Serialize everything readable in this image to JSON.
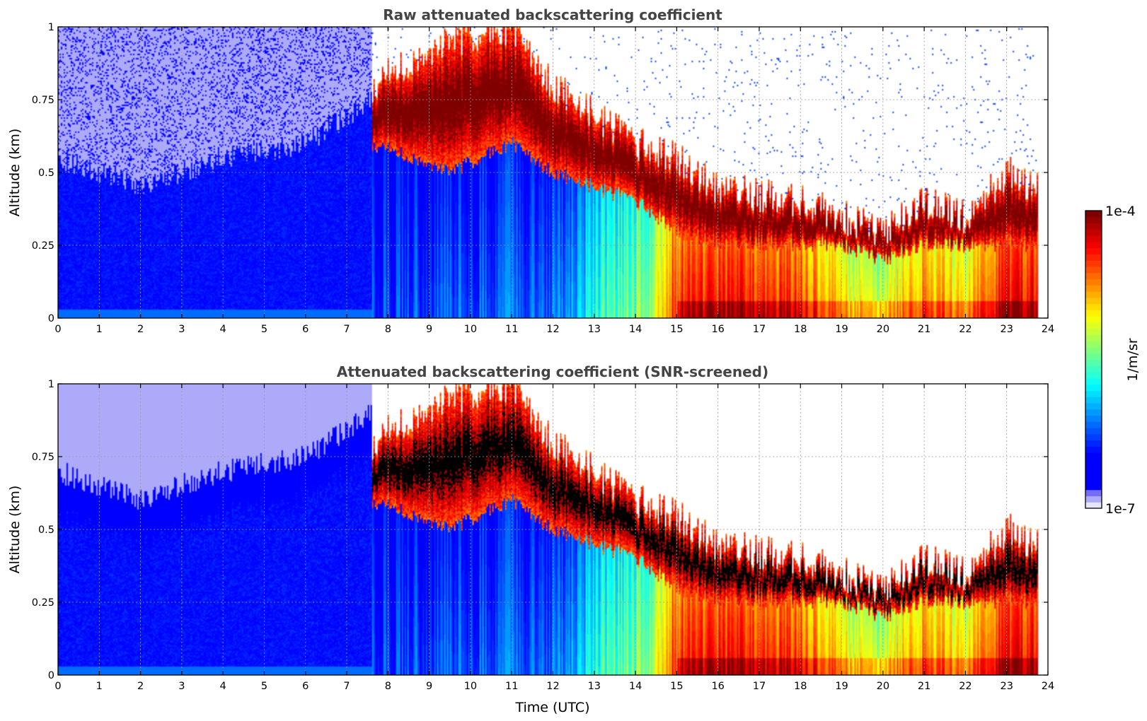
{
  "chart_data": [
    {
      "type": "heatmap",
      "title": "Raw attenuated backscattering coefficient",
      "xlabel": "",
      "ylabel": "Altitude (km)",
      "xlim": [
        0,
        24
      ],
      "ylim": [
        0,
        1
      ],
      "xticks": [
        "0",
        "1",
        "2",
        "3",
        "4",
        "5",
        "6",
        "7",
        "8",
        "9",
        "10",
        "11",
        "12",
        "13",
        "14",
        "15",
        "16",
        "17",
        "18",
        "19",
        "20",
        "21",
        "22",
        "23",
        "24"
      ],
      "yticks": [
        "0",
        "0.25",
        "0.5",
        "0.75",
        "1"
      ],
      "ytick_values": [
        0,
        0.25,
        0.5,
        0.75,
        1
      ],
      "grid": true,
      "screened": false,
      "color_scale": "log10 backscatter, 1e-7 to 1e-4 1/m/sr",
      "layers": [
        {
          "time": [
            0,
            2,
            4,
            6,
            7.6
          ],
          "boundary_layer_top_km": [
            0.55,
            0.45,
            0.55,
            0.6,
            0.75
          ],
          "log10_value": -6.5
        },
        {
          "time": [
            7.6,
            9.5,
            11,
            12,
            13,
            14,
            15,
            16,
            18,
            19,
            20,
            21,
            22,
            23,
            23.75
          ],
          "cloud_top_km": [
            0.8,
            0.95,
            1.0,
            0.8,
            0.7,
            0.6,
            0.55,
            0.45,
            0.4,
            0.35,
            0.3,
            0.4,
            0.35,
            0.5,
            0.45
          ],
          "cloud_base_km": [
            0.6,
            0.5,
            0.6,
            0.5,
            0.45,
            0.4,
            0.3,
            0.25,
            0.25,
            0.25,
            0.2,
            0.25,
            0.25,
            0.25,
            0.25
          ],
          "log10_value": -4.0
        },
        {
          "time": [
            8,
            10,
            12,
            13,
            14,
            14.5,
            15,
            16,
            17,
            18,
            19,
            20,
            21,
            22,
            23,
            23.75
          ],
          "near_surface_log10": [
            -6.3,
            -6.2,
            -6.2,
            -5.7,
            -5.4,
            -5.2,
            -4.4,
            -4.4,
            -4.4,
            -4.5,
            -5.0,
            -5.1,
            -4.7,
            -4.9,
            -4.3,
            -4.3
          ]
        }
      ],
      "data_end_time": 23.75
    },
    {
      "type": "heatmap",
      "title": "Attenuated backscattering coefficient (SNR-screened)",
      "xlabel": "Time (UTC)",
      "ylabel": "Altitude (km)",
      "xlim": [
        0,
        24
      ],
      "ylim": [
        0,
        1
      ],
      "xticks": [
        "0",
        "1",
        "2",
        "3",
        "4",
        "5",
        "6",
        "7",
        "8",
        "9",
        "10",
        "11",
        "12",
        "13",
        "14",
        "15",
        "16",
        "17",
        "18",
        "19",
        "20",
        "21",
        "22",
        "23",
        "24"
      ],
      "yticks": [
        "0",
        "0.25",
        "0.5",
        "0.75",
        "1"
      ],
      "ytick_values": [
        0,
        0.25,
        0.5,
        0.75,
        1
      ],
      "grid": true,
      "screened": true,
      "color_scale": "log10 backscatter, 1e-7 to 1e-4 1/m/sr; black = above 1e-4",
      "data_end_time": 23.75
    }
  ],
  "colorbar": {
    "min_label": "1e-7",
    "max_label": "1e-4",
    "label": "1/m/sr",
    "scale": "log",
    "levels": 48,
    "colors": [
      "#e6e6fa",
      "#0000ff",
      "#00ffff",
      "#ffff00",
      "#ff0000",
      "#800000"
    ]
  }
}
